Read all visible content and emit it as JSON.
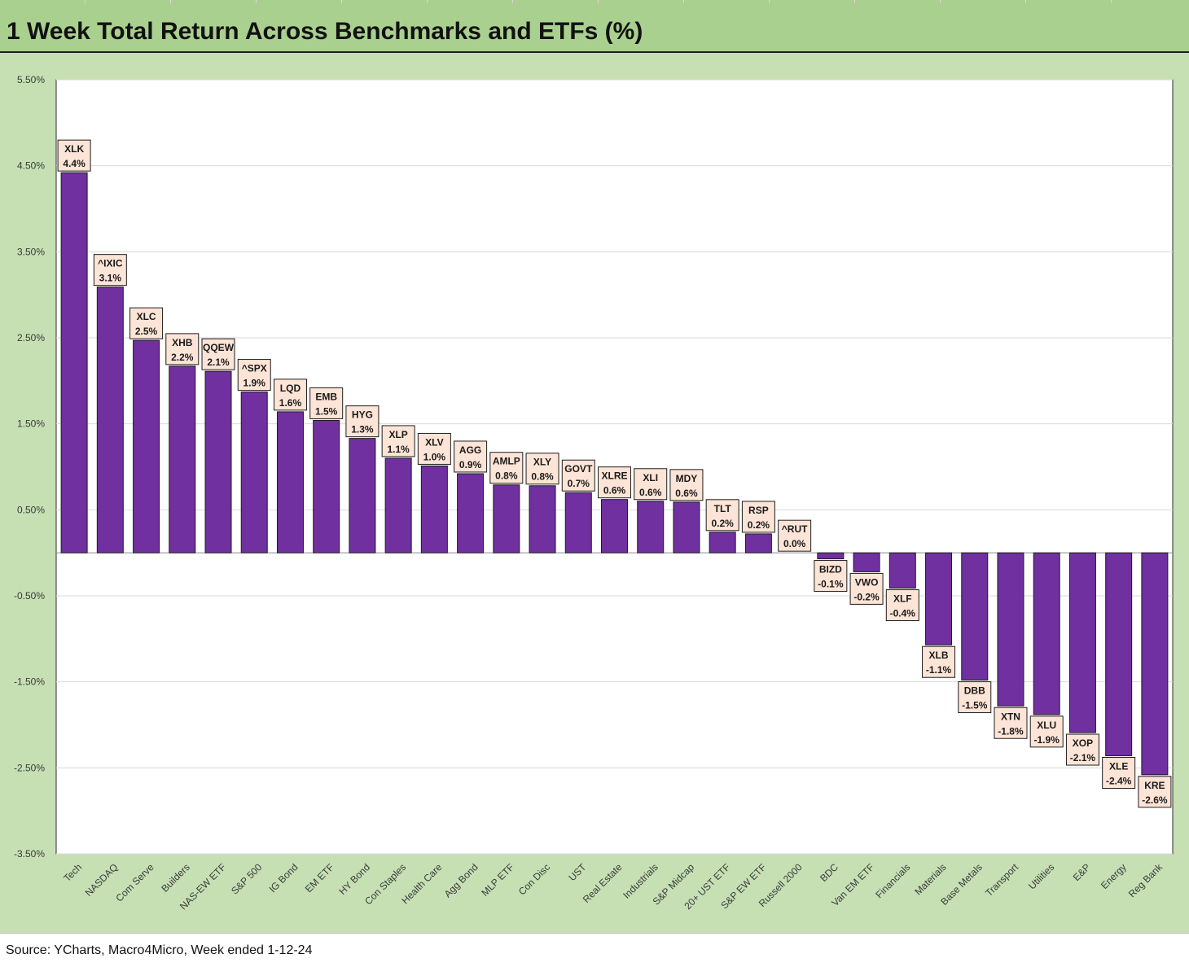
{
  "title": "1 Week Total Return Across Benchmarks and ETFs (%)",
  "source": "Source: YCharts, Macro4Micro, Week ended 1-12-24",
  "colors": {
    "bar": "#7030a0",
    "header": "#a9d08e",
    "chart_area": "#c6e0b4",
    "label_box": "#fce4d6"
  },
  "chart_data": {
    "type": "bar",
    "ylim": [
      -3.5,
      5.5
    ],
    "yticks": [
      "5.50%",
      "4.50%",
      "3.50%",
      "2.50%",
      "1.50%",
      "0.50%",
      "-0.50%",
      "-1.50%",
      "-2.50%",
      "-3.50%"
    ],
    "ytick_values": [
      5.5,
      4.5,
      3.5,
      2.5,
      1.5,
      0.5,
      -0.5,
      -1.5,
      -2.5,
      -3.5
    ],
    "grid": true,
    "categories": [
      "Tech",
      "NASDAQ",
      "Com Serve",
      "Builders",
      "NAS-EW ETF",
      "S&P 500",
      "IG Bond",
      "EM ETF",
      "HY Bond",
      "Con Staples",
      "Health Care",
      "Agg Bond",
      "MLP ETF",
      "Con Disc",
      "UST",
      "Real Estate",
      "Industrials",
      "S&P Midcap",
      "20+ UST ETF",
      "S&P EW ETF",
      "Russell 2000",
      "BDC",
      "Van EM ETF",
      "Financials",
      "Materials",
      "Base Metals",
      "Transport",
      "Utilities",
      "E&P",
      "Energy",
      "Reg Bank"
    ],
    "tickers": [
      "XLK",
      "^IXIC",
      "XLC",
      "XHB",
      "QQEW",
      "^SPX",
      "LQD",
      "EMB",
      "HYG",
      "XLP",
      "XLV",
      "AGG",
      "AMLP",
      "XLY",
      "GOVT",
      "XLRE",
      "XLI",
      "MDY",
      "TLT",
      "RSP",
      "^RUT",
      "BIZD",
      "VWO",
      "XLF",
      "XLB",
      "DBB",
      "XTN",
      "XLU",
      "XOP",
      "XLE",
      "KRE"
    ],
    "value_labels": [
      "4.4%",
      "3.1%",
      "2.5%",
      "2.2%",
      "2.1%",
      "1.9%",
      "1.6%",
      "1.5%",
      "1.3%",
      "1.1%",
      "1.0%",
      "0.9%",
      "0.8%",
      "0.8%",
      "0.7%",
      "0.6%",
      "0.6%",
      "0.6%",
      "0.2%",
      "0.2%",
      "0.0%",
      "-0.1%",
      "-0.2%",
      "-0.4%",
      "-1.1%",
      "-1.5%",
      "-1.8%",
      "-1.9%",
      "-2.1%",
      "-2.4%",
      "-2.6%"
    ],
    "values": [
      4.42,
      3.09,
      2.47,
      2.17,
      2.11,
      1.87,
      1.64,
      1.54,
      1.33,
      1.1,
      1.01,
      0.92,
      0.79,
      0.78,
      0.7,
      0.62,
      0.6,
      0.59,
      0.24,
      0.22,
      0.0,
      -0.07,
      -0.22,
      -0.41,
      -1.07,
      -1.48,
      -1.78,
      -1.88,
      -2.09,
      -2.36,
      -2.58
    ]
  }
}
